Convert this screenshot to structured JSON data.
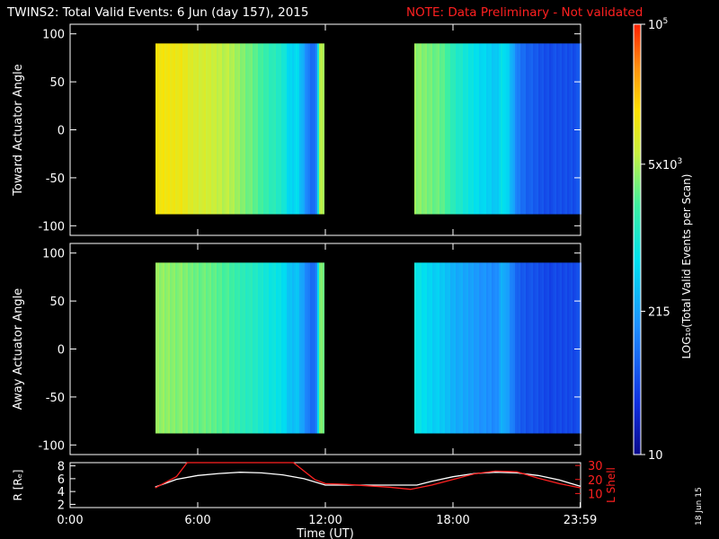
{
  "title": {
    "main": "TWINS2: Total Valid Events:  6 Jun (day 157), 2015",
    "note": "NOTE: Data Preliminary - Not validated"
  },
  "colors": {
    "note": "#ff2020",
    "axis": "#ffffff",
    "radius_line": "#ffffff",
    "lshell_line": "#ff2020",
    "background": "#000000"
  },
  "stamp": "18 Jun 15",
  "chart_data": [
    {
      "type": "heatmap",
      "panel": "toward",
      "ylabel": "Toward Actuator Angle",
      "ylim": [
        -110,
        110
      ],
      "yticks": [
        "100",
        "50",
        "0",
        "-50",
        "-100"
      ],
      "yticks_values": [
        100,
        50,
        0,
        -50,
        -100
      ],
      "xlim_hours": [
        0,
        24
      ],
      "xticks_values": [
        0,
        6,
        12,
        18,
        24
      ],
      "data_y_range": [
        -88,
        90
      ],
      "data_intervals_hours": [
        [
          4.0,
          11.9
        ],
        [
          16.1,
          24.0
        ]
      ],
      "scan_level_note_scale": "log10 counts (1 = 10, 5 = 1e5)",
      "column_levels": [
        [
          4.0,
          4.1
        ],
        [
          4.6,
          4.1
        ],
        [
          5.2,
          4.05
        ],
        [
          5.6,
          3.95
        ],
        [
          6.0,
          3.9
        ],
        [
          6.5,
          3.85
        ],
        [
          7.0,
          3.8
        ],
        [
          7.5,
          3.72
        ],
        [
          8.0,
          3.6
        ],
        [
          8.5,
          3.45
        ],
        [
          9.0,
          3.3
        ],
        [
          9.5,
          3.15
        ],
        [
          10.0,
          3.0
        ],
        [
          10.3,
          2.7
        ],
        [
          10.6,
          2.8
        ],
        [
          10.9,
          2.4
        ],
        [
          11.2,
          2.0
        ],
        [
          11.5,
          1.9
        ],
        [
          11.7,
          3.7
        ],
        [
          11.9,
          3.7
        ],
        [
          16.1,
          3.6
        ],
        [
          16.6,
          3.55
        ],
        [
          17.0,
          3.5
        ],
        [
          17.5,
          3.4
        ],
        [
          18.0,
          3.15
        ],
        [
          18.5,
          2.95
        ],
        [
          19.0,
          2.85
        ],
        [
          19.5,
          2.7
        ],
        [
          20.0,
          2.6
        ],
        [
          20.3,
          2.9
        ],
        [
          20.6,
          2.6
        ],
        [
          21.0,
          2.05
        ],
        [
          21.5,
          1.85
        ],
        [
          22.0,
          1.75
        ],
        [
          22.5,
          1.7
        ],
        [
          23.0,
          1.7
        ],
        [
          23.5,
          1.72
        ],
        [
          24.0,
          1.75
        ]
      ]
    },
    {
      "type": "heatmap",
      "panel": "away",
      "ylabel": "Away Actuator Angle",
      "ylim": [
        -110,
        110
      ],
      "yticks": [
        "100",
        "50",
        "0",
        "-50",
        "-100"
      ],
      "yticks_values": [
        100,
        50,
        0,
        -50,
        -100
      ],
      "xlim_hours": [
        0,
        24
      ],
      "xticks_values": [
        0,
        6,
        12,
        18,
        24
      ],
      "data_y_range": [
        -88,
        90
      ],
      "data_intervals_hours": [
        [
          4.0,
          11.9
        ],
        [
          16.1,
          24.0
        ]
      ],
      "column_levels": [
        [
          4.0,
          3.6
        ],
        [
          4.6,
          3.6
        ],
        [
          5.2,
          3.55
        ],
        [
          5.6,
          3.5
        ],
        [
          6.0,
          3.48
        ],
        [
          6.5,
          3.45
        ],
        [
          7.0,
          3.4
        ],
        [
          7.5,
          3.3
        ],
        [
          8.0,
          3.2
        ],
        [
          8.5,
          3.1
        ],
        [
          9.0,
          3.0
        ],
        [
          9.5,
          2.9
        ],
        [
          10.0,
          2.8
        ],
        [
          10.3,
          2.55
        ],
        [
          10.6,
          2.6
        ],
        [
          10.9,
          2.3
        ],
        [
          11.2,
          2.0
        ],
        [
          11.5,
          1.9
        ],
        [
          11.7,
          3.5
        ],
        [
          11.9,
          3.5
        ],
        [
          16.1,
          2.9
        ],
        [
          16.6,
          2.8
        ],
        [
          17.0,
          2.7
        ],
        [
          17.5,
          2.6
        ],
        [
          18.0,
          2.45
        ],
        [
          18.5,
          2.35
        ],
        [
          19.0,
          2.3
        ],
        [
          19.5,
          2.2
        ],
        [
          20.0,
          2.15
        ],
        [
          20.3,
          2.5
        ],
        [
          20.6,
          2.2
        ],
        [
          21.0,
          1.85
        ],
        [
          21.5,
          1.75
        ],
        [
          22.0,
          1.7
        ],
        [
          22.5,
          1.65
        ],
        [
          23.0,
          1.65
        ],
        [
          23.5,
          1.68
        ],
        [
          24.0,
          1.7
        ]
      ]
    },
    {
      "type": "line",
      "panel": "orbit",
      "ylabel_left": "R [Rₑ]",
      "ylabel_right": "L Shell",
      "xlabel": "Time (UT)",
      "xticks": [
        "0:00",
        "6:00",
        "12:00",
        "18:00",
        "23:59"
      ],
      "xticks_values": [
        0,
        6,
        12,
        18,
        23.98
      ],
      "ylim_left": [
        1.5,
        8.5
      ],
      "yticks_left": [
        "8",
        "6",
        "4",
        "2"
      ],
      "yticks_left_values": [
        8,
        6,
        4,
        2
      ],
      "ylim_right": [
        0,
        32
      ],
      "yticks_right": [
        "30",
        "20",
        "10"
      ],
      "yticks_right_values": [
        30,
        20,
        10
      ],
      "series": [
        {
          "axis": "left",
          "color": "#ffffff",
          "x": [
            4.0,
            5.0,
            6.0,
            7.0,
            8.0,
            9.0,
            10.0,
            11.0,
            12.0,
            13.0,
            14.0,
            15.0,
            16.3,
            17.0,
            18.0,
            19.0,
            20.0,
            21.0,
            22.0,
            23.0,
            24.0
          ],
          "y": [
            4.7,
            5.9,
            6.5,
            6.8,
            7.0,
            6.9,
            6.6,
            6.0,
            5.0,
            5.0,
            5.0,
            5.0,
            5.0,
            5.6,
            6.3,
            6.8,
            7.0,
            6.9,
            6.5,
            5.8,
            4.8
          ]
        },
        {
          "axis": "right",
          "color": "#ff2020",
          "x": [
            4.0,
            5.0,
            5.5,
            10.5,
            11.0,
            11.5,
            12.0,
            13.0,
            14.0,
            15.0,
            16.0,
            17.0,
            18.0,
            19.0,
            20.0,
            21.0,
            22.0,
            23.0,
            24.0
          ],
          "y": [
            14.0,
            22.0,
            32.0,
            32.0,
            26.0,
            20.0,
            17.0,
            16.5,
            15.5,
            14.5,
            13.0,
            16.0,
            20.0,
            24.0,
            26.0,
            25.5,
            21.0,
            17.0,
            14.0
          ]
        }
      ]
    },
    {
      "type": "heatmap",
      "panel": "colorbar",
      "label": "LOG₁₀(Total Valid Events per Scan)",
      "range_log10": [
        1,
        5
      ],
      "ticks": [
        "10",
        "215",
        "5x10",
        "10"
      ],
      "tick_exponents": [
        "",
        "",
        "3",
        "5"
      ],
      "tick_values_log10": [
        1,
        2.332,
        3.699,
        5
      ]
    }
  ]
}
